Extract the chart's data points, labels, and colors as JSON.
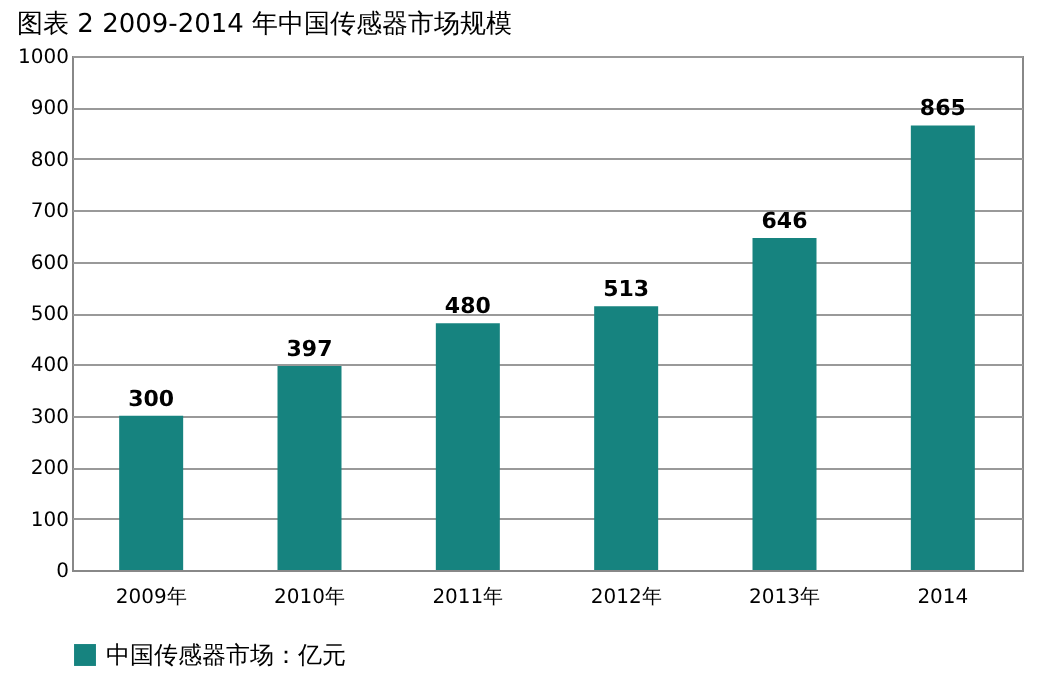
{
  "chart_data": {
    "type": "bar",
    "title": "图表 2   2009-2014 年中国传感器市场规模",
    "categories": [
      "2009年",
      "2010年",
      "2011年",
      "2012年",
      "2013年",
      "2014"
    ],
    "series": [
      {
        "name": "中国传感器市场：亿元",
        "color": "#16837f",
        "values": [
          300,
          397,
          480,
          513,
          646,
          865
        ]
      }
    ],
    "ylim": [
      0,
      1000
    ],
    "yticks": [
      0,
      100,
      200,
      300,
      400,
      500,
      600,
      700,
      800,
      900,
      1000
    ],
    "grid": "y",
    "legend": "bottom",
    "data_labels": true
  }
}
